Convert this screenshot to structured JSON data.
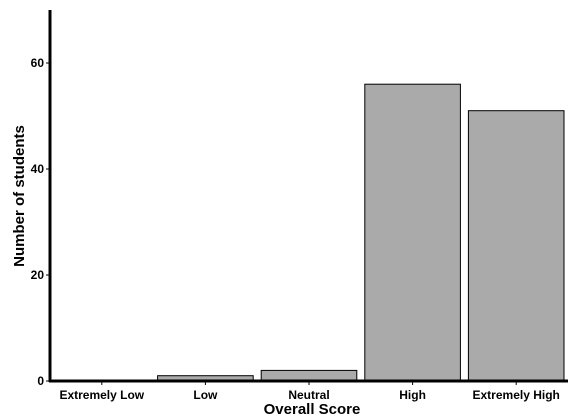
{
  "chart_data": {
    "type": "bar",
    "title": "",
    "xlabel": "Overall Score",
    "ylabel": "Number of students",
    "categories": [
      "Extremely Low",
      "Low",
      "Neutral",
      "High",
      "Extremely High"
    ],
    "values": [
      0,
      1,
      2,
      56,
      51
    ],
    "ylim": [
      0,
      70
    ],
    "yticks": [
      0,
      20,
      40,
      60
    ],
    "grid": false,
    "legend": "none",
    "bar_color": "#aaaaaa",
    "bar_edge_color": "#000000",
    "axis_color": "#000000"
  }
}
